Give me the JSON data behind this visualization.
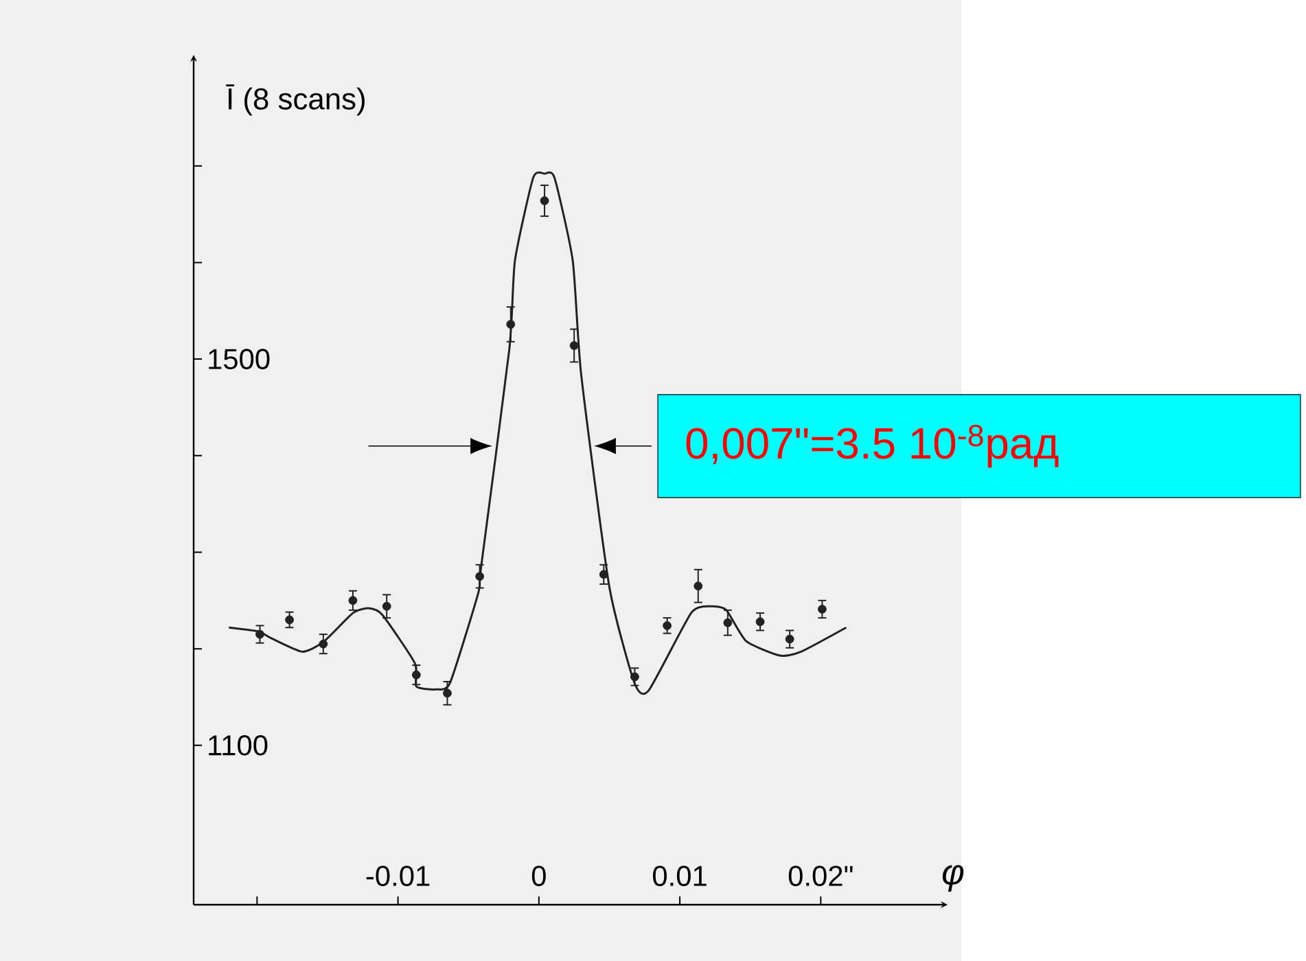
{
  "chart_data": {
    "type": "scatter",
    "xlabel": "φ",
    "ylabel": "Ī (8 scans)",
    "annotations": [
      "0,007\"=3.5 10$^{-8}$рад"
    ],
    "xlim": [
      -0.0245,
      0.029
    ],
    "ylim": [
      935,
      1815
    ],
    "xticks": [
      {
        "value": -0.02,
        "label": null
      },
      -0.01,
      0,
      0.01,
      {
        "value": 0.02,
        "label": "0.02\""
      }
    ],
    "yticks": [
      1100,
      {
        "value": 1200,
        "label": null
      },
      {
        "value": 1300,
        "label": null
      },
      {
        "value": 1400,
        "label": null
      },
      1500,
      {
        "value": 1600,
        "label": null
      },
      {
        "value": 1700,
        "label": null
      }
    ],
    "series": [
      {
        "marker": "circle",
        "color": "#222222",
        "x": [
          -0.0198,
          -0.0177,
          -0.0153,
          -0.0132,
          -0.0108,
          -0.0087,
          -0.0065,
          -0.0042,
          -0.002,
          0.0004,
          0.0025,
          0.0046,
          0.0068,
          0.0091,
          0.0113,
          0.0134,
          0.0157,
          0.0178,
          0.0201
        ],
        "values": [
          1215,
          1230,
          1205,
          1250,
          1244,
          1173,
          1154,
          1275,
          1536,
          1664,
          1514,
          1277,
          1171,
          1224,
          1265,
          1227,
          1228,
          1210,
          1241
        ],
        "errors": [
          9,
          8,
          10,
          10,
          12,
          10,
          12,
          12,
          18,
          16,
          17,
          10,
          9,
          8,
          17,
          13,
          9,
          9,
          9
        ]
      },
      {
        "type": "line",
        "marker": "none",
        "color": "#222222",
        "x": [
          -0.022,
          -0.0199,
          -0.019,
          -0.0168,
          -0.0153,
          -0.0132,
          -0.0121,
          -0.0111,
          -0.0088,
          -0.0087,
          -0.0073,
          -0.0063,
          -0.0043,
          -0.0041,
          -0.0021,
          -0.0017,
          -0.0004,
          0.0004,
          0.0011,
          0.0024,
          0.003,
          0.005,
          0.0068,
          0.0078,
          0.0108,
          0.0122,
          0.0133,
          0.0147,
          0.0171,
          0.0186,
          0.0218
        ],
        "values": [
          1222,
          1218,
          1211,
          1197,
          1207,
          1237,
          1242,
          1235,
          1185,
          1161,
          1158,
          1165,
          1258,
          1285,
          1510,
          1602,
          1688,
          1692,
          1688,
          1602,
          1484,
          1264,
          1164,
          1157,
          1237,
          1244,
          1240,
          1208,
          1193,
          1197,
          1222
        ]
      }
    ]
  }
}
